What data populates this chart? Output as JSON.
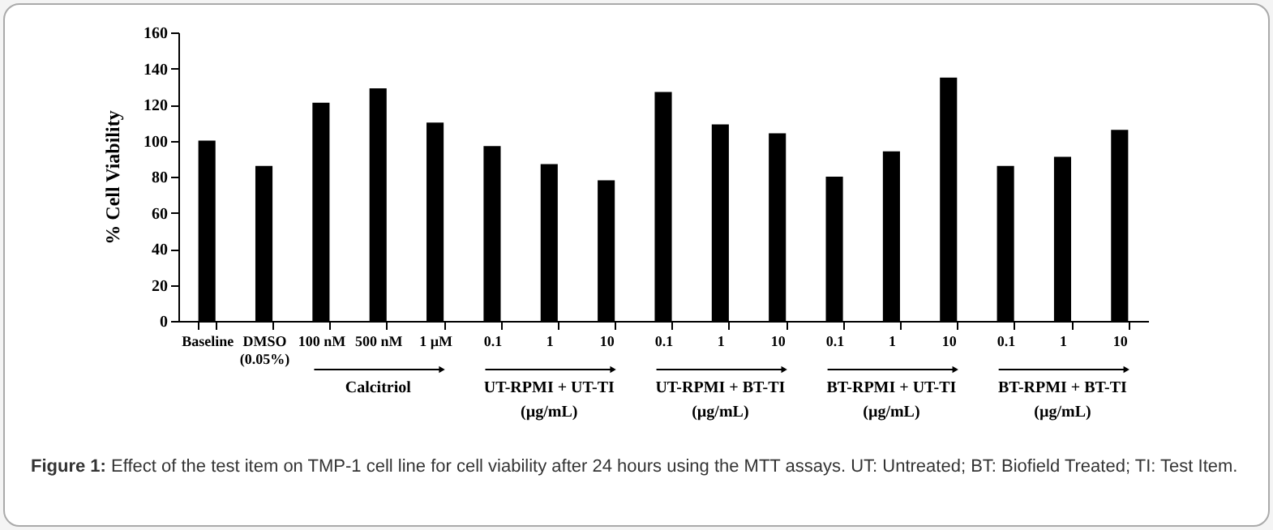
{
  "chart_data": {
    "type": "bar",
    "ylabel": "% Cell Viability",
    "categories": [
      "Baseline",
      "DMSO\n(0.05%)",
      "100 nM",
      "500 nM",
      "1 µM",
      "0.1",
      "1",
      "10",
      "0.1",
      "1",
      "10",
      "0.1",
      "1",
      "10",
      "0.1",
      "1",
      "10"
    ],
    "values": [
      100,
      86,
      121,
      129,
      110,
      97,
      87,
      78,
      127,
      109,
      104,
      80,
      94,
      135,
      86,
      91,
      106
    ],
    "color": "#000000",
    "ylim": [
      0,
      160
    ],
    "yticks": [
      0,
      20,
      40,
      60,
      80,
      100,
      120,
      140,
      160
    ],
    "grid": false,
    "annotations": [
      "Calcitriol",
      "UT-RPMI + UT-TI\n(µg/mL)",
      "UT-RPMI + BT-TI\n(µg/mL)",
      "BT-RPMI + UT-TI\n(µg/mL)",
      "BT-RPMI + BT-TI\n(µg/mL)",
      "Figure 1: Effect of the test item on TMP-1 cell line for cell viability after 24 hours using the MTT assays. UT: Untreated; BT: Biofield Treated; TI: Test Item."
    ]
  }
}
